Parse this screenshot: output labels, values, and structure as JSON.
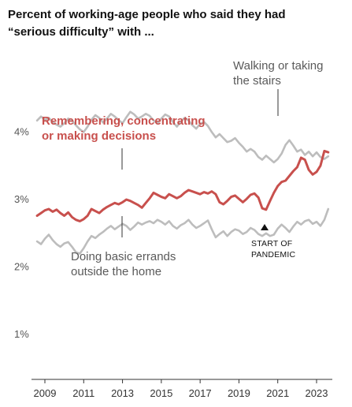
{
  "chart_data": {
    "type": "line",
    "title": "Percent of working-age people who said they had “serious difficulty” with ...",
    "title_lines": [
      "Percent of working-age people who said they had",
      "“serious difficulty” with ..."
    ],
    "xlim": [
      2008.3,
      2023.9
    ],
    "ylim": [
      0.5,
      4.5
    ],
    "y_ticks": [
      1,
      2,
      3,
      4
    ],
    "y_tick_labels": [
      "1%",
      "2%",
      "3%",
      "4%"
    ],
    "x_ticks": [
      2009,
      2011,
      2013,
      2015,
      2017,
      2019,
      2021,
      2023
    ],
    "x_tick_labels": [
      "2009",
      "2011",
      "2013",
      "2015",
      "2017",
      "2019",
      "2021",
      "2023"
    ],
    "grid": false,
    "series": [
      {
        "name": "Walking or taking the stairs",
        "color": "#bdbdbd",
        "x": [
          2008.6,
          2008.8,
          2009.0,
          2009.2,
          2009.4,
          2009.6,
          2009.8,
          2010.0,
          2010.2,
          2010.4,
          2010.6,
          2010.8,
          2011.0,
          2011.2,
          2011.4,
          2011.6,
          2011.8,
          2012.0,
          2012.2,
          2012.4,
          2012.6,
          2012.8,
          2013.0,
          2013.2,
          2013.4,
          2013.6,
          2013.8,
          2014.0,
          2014.2,
          2014.4,
          2014.6,
          2014.8,
          2015.0,
          2015.2,
          2015.4,
          2015.6,
          2015.8,
          2016.0,
          2016.2,
          2016.4,
          2016.6,
          2016.8,
          2017.0,
          2017.2,
          2017.4,
          2017.6,
          2017.8,
          2018.0,
          2018.2,
          2018.4,
          2018.6,
          2018.8,
          2019.0,
          2019.2,
          2019.4,
          2019.6,
          2019.8,
          2020.0,
          2020.2,
          2020.4,
          2020.6,
          2020.8,
          2021.0,
          2021.2,
          2021.4,
          2021.6,
          2021.8,
          2022.0,
          2022.2,
          2022.4,
          2022.6,
          2022.8,
          2023.0,
          2023.2,
          2023.4,
          2023.6
        ],
        "values": [
          4.17,
          4.23,
          4.18,
          4.21,
          4.15,
          4.11,
          4.08,
          4.13,
          4.2,
          4.17,
          4.1,
          4.04,
          4.0,
          4.08,
          4.18,
          4.25,
          4.21,
          4.14,
          4.2,
          4.27,
          4.23,
          4.18,
          4.13,
          4.22,
          4.3,
          4.26,
          4.2,
          4.23,
          4.27,
          4.24,
          4.17,
          4.13,
          4.2,
          4.26,
          4.23,
          4.15,
          4.08,
          4.15,
          4.21,
          4.17,
          4.1,
          4.05,
          4.12,
          4.15,
          4.09,
          4.0,
          3.92,
          3.97,
          3.91,
          3.85,
          3.87,
          3.91,
          3.84,
          3.78,
          3.71,
          3.75,
          3.71,
          3.63,
          3.59,
          3.65,
          3.6,
          3.55,
          3.6,
          3.68,
          3.81,
          3.88,
          3.8,
          3.71,
          3.74,
          3.66,
          3.71,
          3.64,
          3.7,
          3.63,
          3.6,
          3.64
        ]
      },
      {
        "name": "Remembering, concentrating or making decisions",
        "color": "#c8504d",
        "x": [
          2008.6,
          2008.8,
          2009.0,
          2009.2,
          2009.4,
          2009.6,
          2009.8,
          2010.0,
          2010.2,
          2010.4,
          2010.6,
          2010.8,
          2011.0,
          2011.2,
          2011.4,
          2011.6,
          2011.8,
          2012.0,
          2012.2,
          2012.4,
          2012.6,
          2012.8,
          2013.0,
          2013.2,
          2013.4,
          2013.6,
          2013.8,
          2014.0,
          2014.2,
          2014.4,
          2014.6,
          2014.8,
          2015.0,
          2015.2,
          2015.4,
          2015.6,
          2015.8,
          2016.0,
          2016.2,
          2016.4,
          2016.6,
          2016.8,
          2017.0,
          2017.2,
          2017.4,
          2017.6,
          2017.8,
          2018.0,
          2018.2,
          2018.4,
          2018.6,
          2018.8,
          2019.0,
          2019.2,
          2019.4,
          2019.6,
          2019.8,
          2020.0,
          2020.2,
          2020.4,
          2020.6,
          2020.8,
          2021.0,
          2021.2,
          2021.4,
          2021.6,
          2021.8,
          2022.0,
          2022.2,
          2022.4,
          2022.6,
          2022.8,
          2023.0,
          2023.2,
          2023.4,
          2023.6
        ],
        "values": [
          2.76,
          2.8,
          2.84,
          2.86,
          2.82,
          2.85,
          2.8,
          2.76,
          2.81,
          2.74,
          2.7,
          2.68,
          2.71,
          2.76,
          2.86,
          2.83,
          2.8,
          2.85,
          2.89,
          2.92,
          2.95,
          2.93,
          2.96,
          3.0,
          2.98,
          2.95,
          2.92,
          2.88,
          2.95,
          3.02,
          3.1,
          3.07,
          3.04,
          3.02,
          3.08,
          3.05,
          3.02,
          3.05,
          3.1,
          3.14,
          3.12,
          3.1,
          3.08,
          3.11,
          3.09,
          3.12,
          3.08,
          2.96,
          2.93,
          2.98,
          3.04,
          3.06,
          3.01,
          2.96,
          3.01,
          3.07,
          3.09,
          3.03,
          2.87,
          2.85,
          2.98,
          3.1,
          3.2,
          3.26,
          3.28,
          3.35,
          3.42,
          3.48,
          3.62,
          3.59,
          3.44,
          3.37,
          3.41,
          3.5,
          3.72,
          3.7
        ]
      },
      {
        "name": "Doing basic errands outside the home",
        "color": "#bdbdbd",
        "x": [
          2008.6,
          2008.8,
          2009.0,
          2009.2,
          2009.4,
          2009.6,
          2009.8,
          2010.0,
          2010.2,
          2010.4,
          2010.6,
          2010.8,
          2011.0,
          2011.2,
          2011.4,
          2011.6,
          2011.8,
          2012.0,
          2012.2,
          2012.4,
          2012.6,
          2012.8,
          2013.0,
          2013.2,
          2013.4,
          2013.6,
          2013.8,
          2014.0,
          2014.2,
          2014.4,
          2014.6,
          2014.8,
          2015.0,
          2015.2,
          2015.4,
          2015.6,
          2015.8,
          2016.0,
          2016.2,
          2016.4,
          2016.6,
          2016.8,
          2017.0,
          2017.2,
          2017.4,
          2017.6,
          2017.8,
          2018.0,
          2018.2,
          2018.4,
          2018.6,
          2018.8,
          2019.0,
          2019.2,
          2019.4,
          2019.6,
          2019.8,
          2020.0,
          2020.2,
          2020.4,
          2020.6,
          2020.8,
          2021.0,
          2021.2,
          2021.4,
          2021.6,
          2021.8,
          2022.0,
          2022.2,
          2022.4,
          2022.6,
          2022.8,
          2023.0,
          2023.2,
          2023.4,
          2023.6
        ],
        "values": [
          2.38,
          2.34,
          2.42,
          2.48,
          2.4,
          2.34,
          2.3,
          2.35,
          2.37,
          2.3,
          2.22,
          2.2,
          2.28,
          2.38,
          2.46,
          2.43,
          2.48,
          2.52,
          2.57,
          2.61,
          2.56,
          2.6,
          2.64,
          2.61,
          2.55,
          2.6,
          2.66,
          2.63,
          2.66,
          2.68,
          2.65,
          2.7,
          2.67,
          2.63,
          2.68,
          2.61,
          2.57,
          2.62,
          2.65,
          2.7,
          2.63,
          2.58,
          2.61,
          2.65,
          2.69,
          2.56,
          2.44,
          2.49,
          2.53,
          2.46,
          2.52,
          2.56,
          2.54,
          2.49,
          2.52,
          2.58,
          2.55,
          2.49,
          2.46,
          2.5,
          2.46,
          2.48,
          2.57,
          2.63,
          2.58,
          2.52,
          2.6,
          2.67,
          2.63,
          2.68,
          2.7,
          2.64,
          2.67,
          2.61,
          2.7,
          2.86
        ]
      }
    ],
    "annotations": {
      "walking_lines": [
        "Walking or taking",
        "the stairs"
      ],
      "remembering_lines": [
        "Remembering, concentrating",
        "or making decisions"
      ],
      "errands_lines": [
        "Doing basic errands",
        "outside the home"
      ],
      "pandemic_lines": [
        "START OF",
        "PANDEMIC"
      ]
    }
  }
}
